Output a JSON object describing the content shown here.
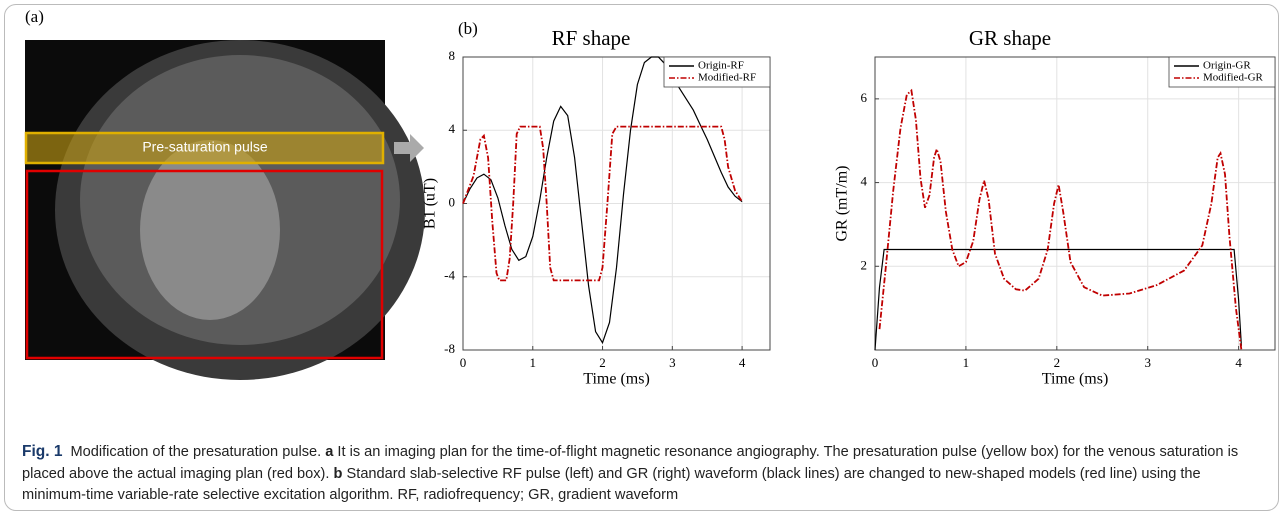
{
  "panel_a": {
    "label": "(a)",
    "box_text": "Pre-saturation pulse"
  },
  "chart_data": [
    {
      "type": "line",
      "panel_label": "(b)",
      "title": "RF shape",
      "xlabel": "Time (ms)",
      "ylabel": "B1 (uT)",
      "xlim": [
        0,
        4.4
      ],
      "ylim": [
        -8,
        8
      ],
      "xticks": [
        0,
        1,
        2,
        3,
        4
      ],
      "yticks": [
        -8,
        -4,
        0,
        4,
        8
      ],
      "grid": true,
      "legend": "upper right",
      "series": [
        {
          "name": "Origin-RF",
          "color": "#000000",
          "style": "solid",
          "x": [
            0,
            0.1,
            0.2,
            0.3,
            0.4,
            0.5,
            0.6,
            0.7,
            0.8,
            0.9,
            1.0,
            1.1,
            1.2,
            1.3,
            1.4,
            1.5,
            1.6,
            1.7,
            1.8,
            1.9,
            2.0,
            2.1,
            2.2,
            2.3,
            2.4,
            2.5,
            2.6,
            2.7,
            2.8,
            2.9,
            3.0,
            3.1,
            3.2,
            3.3,
            3.4,
            3.5,
            3.6,
            3.7,
            3.8,
            3.9,
            4.0
          ],
          "values": [
            0,
            0.8,
            1.4,
            1.6,
            1.3,
            0.3,
            -1.2,
            -2.5,
            -3.1,
            -2.9,
            -1.8,
            0.2,
            2.5,
            4.5,
            5.3,
            4.8,
            2.5,
            -1,
            -4.5,
            -7,
            -7.6,
            -6.5,
            -3.5,
            0.5,
            4,
            6.5,
            7.7,
            8.0,
            8.0,
            7.6,
            7,
            6.3,
            5.7,
            5.1,
            4.3,
            3.5,
            2.6,
            1.7,
            0.9,
            0.4,
            0.1
          ]
        },
        {
          "name": "Modified-RF",
          "color": "#c00000",
          "style": "dashdot",
          "x": [
            0,
            0.15,
            0.25,
            0.3,
            0.36,
            0.42,
            0.48,
            0.52,
            0.62,
            0.67,
            0.72,
            0.77,
            0.82,
            1.1,
            1.15,
            1.2,
            1.25,
            1.3,
            1.95,
            2.0,
            2.07,
            2.14,
            2.2,
            3.7,
            3.75,
            3.8,
            3.9,
            4.0
          ],
          "values": [
            0,
            1.5,
            3.5,
            3.7,
            2.5,
            -1,
            -3.8,
            -4.2,
            -4.2,
            -3,
            0,
            3.8,
            4.2,
            4.2,
            3,
            0,
            -3.5,
            -4.2,
            -4.2,
            -3.5,
            0,
            3.8,
            4.2,
            4.2,
            3.5,
            2,
            0.7,
            0.1
          ]
        }
      ]
    },
    {
      "type": "line",
      "title": "GR shape",
      "xlabel": "Time (ms)",
      "ylabel": "GR (mT/m)",
      "xlim": [
        0,
        4.4
      ],
      "ylim": [
        0,
        7
      ],
      "xticks": [
        0,
        1,
        2,
        3,
        4
      ],
      "yticks": [
        2,
        4,
        6
      ],
      "grid": true,
      "legend": "upper right",
      "series": [
        {
          "name": "Origin-GR",
          "color": "#000000",
          "style": "solid",
          "x": [
            0,
            0.05,
            0.1,
            3.95,
            4.0,
            4.03
          ],
          "values": [
            0,
            1.5,
            2.4,
            2.4,
            1.2,
            0.1
          ]
        },
        {
          "name": "Modified-GR",
          "color": "#c00000",
          "style": "dashdot",
          "x": [
            0.05,
            0.12,
            0.2,
            0.28,
            0.35,
            0.4,
            0.45,
            0.5,
            0.55,
            0.6,
            0.65,
            0.68,
            0.72,
            0.78,
            0.85,
            0.92,
            1.0,
            1.08,
            1.15,
            1.2,
            1.25,
            1.32,
            1.42,
            1.55,
            1.65,
            1.8,
            1.9,
            1.97,
            2.02,
            2.07,
            2.15,
            2.3,
            2.5,
            2.8,
            3.1,
            3.4,
            3.6,
            3.7,
            3.77,
            3.8,
            3.85,
            3.9,
            3.97,
            4.03
          ],
          "values": [
            0.5,
            2,
            3.8,
            5.3,
            6.1,
            6.2,
            5.5,
            4.1,
            3.4,
            3.7,
            4.6,
            4.8,
            4.5,
            3.3,
            2.4,
            2.0,
            2.1,
            2.6,
            3.6,
            4.05,
            3.6,
            2.3,
            1.7,
            1.45,
            1.42,
            1.7,
            2.4,
            3.5,
            3.95,
            3.3,
            2.1,
            1.5,
            1.3,
            1.35,
            1.55,
            1.9,
            2.5,
            3.5,
            4.6,
            4.7,
            4.2,
            2.7,
            1,
            0
          ]
        }
      ]
    }
  ],
  "caption": {
    "label": "Fig. 1",
    "title": "Modification of the presaturation pulse.",
    "a_label": "a",
    "a_text": "It is an imaging plan for the time-of-flight magnetic resonance angiography. The presaturation pulse (yellow box) for the venous saturation is placed above the actual imaging plan (red box).",
    "b_label": "b",
    "b_text": "Standard slab-selective RF pulse (left) and GR (right) waveform (black lines) are changed to new-shaped models (red line) using the minimum-time variable-rate selective excitation algorithm. RF, radiofrequency; GR, gradient waveform"
  }
}
